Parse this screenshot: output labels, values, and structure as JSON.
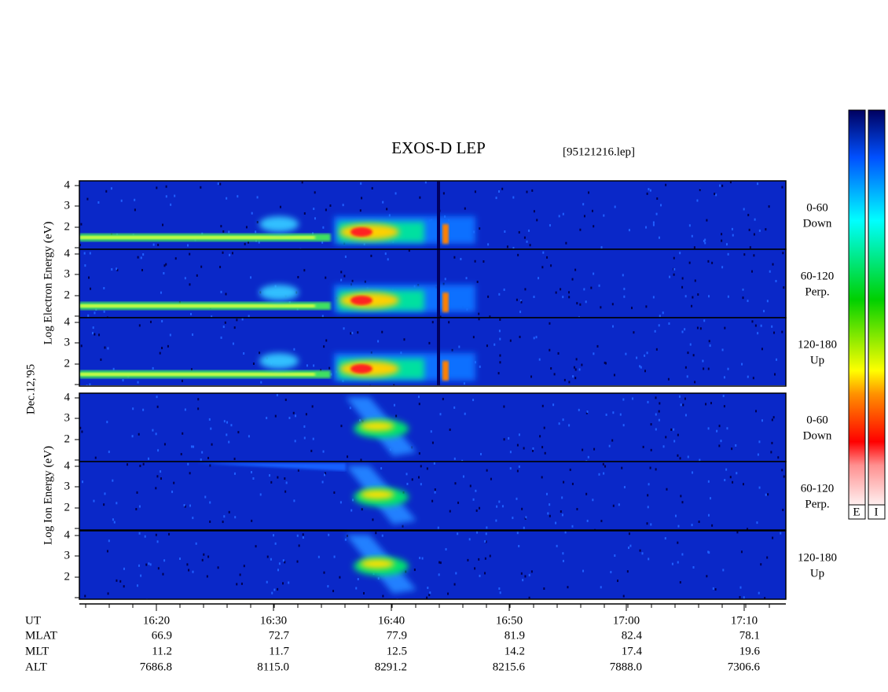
{
  "header": {
    "title": "EXOS-D LEP",
    "file": "[95121216.lep]",
    "date": "Dec.12,'95"
  },
  "electron_axis": {
    "label": "Log  Electron  Energy (eV)"
  },
  "ion_axis": {
    "label": "Log  Ion  Energy (eV)"
  },
  "yticks": [
    "4",
    "3",
    "2"
  ],
  "panels": [
    {
      "angle": "0-60",
      "direction": "Down"
    },
    {
      "angle": "60-120",
      "direction": "Perp."
    },
    {
      "angle": "120-180",
      "direction": "Up"
    },
    {
      "angle": "0-60",
      "direction": "Down"
    },
    {
      "angle": "60-120",
      "direction": "Perp."
    },
    {
      "angle": "120-180",
      "direction": "Up"
    }
  ],
  "ephemeris": {
    "row_labels": [
      "UT",
      "MLAT",
      "MLT",
      "ALT"
    ],
    "times": [
      "16:20",
      "16:30",
      "16:40",
      "16:50",
      "17:00",
      "17:10"
    ],
    "rows": [
      [
        "66.9",
        "72.7",
        "77.9",
        "81.9",
        "82.4",
        "78.1"
      ],
      [
        "11.2",
        "11.7",
        "12.5",
        "14.2",
        "17.4",
        "19.6"
      ],
      [
        "7686.8",
        "8115.0",
        "8291.2",
        "8215.6",
        "7888.0",
        "7306.6"
      ]
    ]
  },
  "colorbars": [
    "E",
    "I"
  ]
}
